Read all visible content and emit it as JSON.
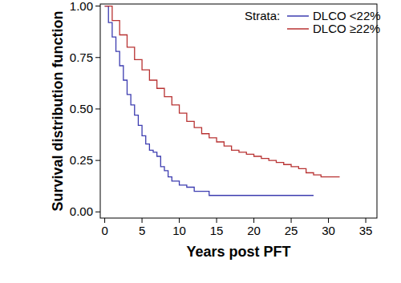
{
  "chart_data": {
    "type": "line",
    "x_label": "Years post PFT",
    "y_label": "Survival distribution function",
    "legend_title": "Strata:",
    "legend": "top-right",
    "grid": false,
    "line_style": "step",
    "xlim": [
      -0.6,
      36.5
    ],
    "ylim": [
      -0.03,
      1.01
    ],
    "xticks": [
      0,
      5,
      10,
      15,
      20,
      25,
      30,
      35
    ],
    "yticks": [
      {
        "value": 0,
        "label": "0.00"
      },
      {
        "value": 0.25,
        "label": "0.25"
      },
      {
        "value": 0.5,
        "label": "0.50"
      },
      {
        "value": 0.75,
        "label": "0.75"
      },
      {
        "value": 1,
        "label": "1.00"
      }
    ],
    "series": [
      {
        "name": "DLCO <22%",
        "color": "#3c3cb0",
        "x": [
          0,
          0.5,
          1,
          1.5,
          2,
          2.5,
          3,
          3.5,
          4,
          4.5,
          5,
          5.5,
          6,
          6.5,
          7,
          7.5,
          8,
          8.5,
          9,
          10,
          11,
          12,
          13,
          14,
          20,
          28
        ],
        "values": [
          1,
          0.92,
          0.85,
          0.78,
          0.71,
          0.64,
          0.57,
          0.52,
          0.47,
          0.42,
          0.37,
          0.33,
          0.3,
          0.29,
          0.27,
          0.22,
          0.2,
          0.17,
          0.15,
          0.13,
          0.12,
          0.1,
          0.1,
          0.08,
          0.08,
          0.08
        ]
      },
      {
        "name": "DLCO ≥22%",
        "color": "#b83232",
        "x": [
          0,
          1,
          2,
          3,
          4,
          5,
          6,
          7,
          8,
          9,
          10,
          11,
          12,
          13,
          14,
          15,
          16,
          17,
          18,
          19,
          20,
          21,
          22,
          23,
          24,
          25,
          26,
          27,
          28,
          29,
          30,
          31.5
        ],
        "values": [
          1,
          0.93,
          0.86,
          0.8,
          0.74,
          0.69,
          0.64,
          0.6,
          0.56,
          0.52,
          0.48,
          0.44,
          0.41,
          0.38,
          0.36,
          0.34,
          0.32,
          0.3,
          0.29,
          0.28,
          0.27,
          0.26,
          0.25,
          0.24,
          0.23,
          0.22,
          0.21,
          0.19,
          0.18,
          0.17,
          0.17,
          0.17
        ]
      }
    ]
  }
}
